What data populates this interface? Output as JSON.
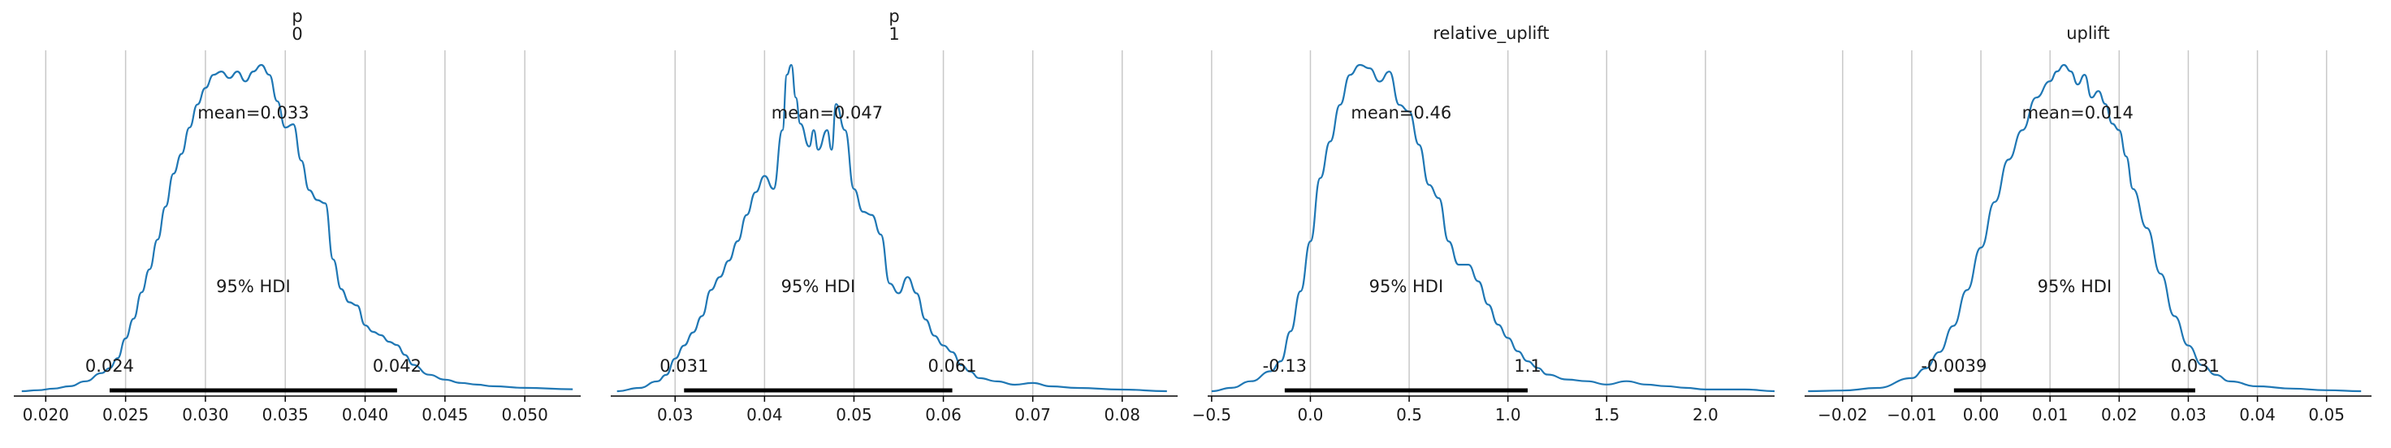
{
  "colors": {
    "density": "#1f77b4",
    "grid": "#c8c8c8",
    "hdi_bar": "#000000",
    "axis": "#000000"
  },
  "chart_data": [
    {
      "type": "area",
      "title": [
        "p",
        "0"
      ],
      "xlim": [
        0.018,
        0.0535
      ],
      "xticks": [
        0.02,
        0.025,
        0.03,
        0.035,
        0.04,
        0.045,
        0.05
      ],
      "xtick_labels": [
        "0.020",
        "0.025",
        "0.030",
        "0.035",
        "0.040",
        "0.045",
        "0.050"
      ],
      "mean_label": "mean=0.033",
      "mean": 0.033,
      "hdi_label": "95% HDI",
      "hdi": [
        0.024,
        0.042
      ],
      "hdi_low_label": "0.024",
      "hdi_high_label": "0.042",
      "density": {
        "x": [
          0.0185,
          0.0195,
          0.0205,
          0.0215,
          0.0225,
          0.0235,
          0.024,
          0.0245,
          0.025,
          0.0255,
          0.026,
          0.0265,
          0.027,
          0.0275,
          0.028,
          0.0285,
          0.029,
          0.0295,
          0.03,
          0.0305,
          0.031,
          0.0315,
          0.032,
          0.0325,
          0.033,
          0.0335,
          0.034,
          0.0345,
          0.035,
          0.0355,
          0.036,
          0.0365,
          0.037,
          0.0375,
          0.038,
          0.0385,
          0.039,
          0.0395,
          0.04,
          0.0405,
          0.041,
          0.0415,
          0.042,
          0.0425,
          0.043,
          0.044,
          0.045,
          0.046,
          0.047,
          0.048,
          0.05,
          0.053
        ],
        "y": [
          0.0,
          0.003,
          0.008,
          0.015,
          0.03,
          0.055,
          0.07,
          0.1,
          0.16,
          0.22,
          0.3,
          0.37,
          0.46,
          0.56,
          0.66,
          0.72,
          0.8,
          0.87,
          0.92,
          0.96,
          0.97,
          0.95,
          0.97,
          0.94,
          0.97,
          0.99,
          0.96,
          0.88,
          0.8,
          0.81,
          0.7,
          0.61,
          0.58,
          0.57,
          0.4,
          0.31,
          0.27,
          0.26,
          0.2,
          0.18,
          0.17,
          0.15,
          0.14,
          0.11,
          0.08,
          0.05,
          0.035,
          0.025,
          0.02,
          0.015,
          0.01,
          0.006
        ]
      }
    },
    {
      "type": "area",
      "title": [
        "p",
        "1"
      ],
      "xlim": [
        0.0228,
        0.0862
      ],
      "xticks": [
        0.03,
        0.04,
        0.05,
        0.06,
        0.07,
        0.08
      ],
      "xtick_labels": [
        "0.03",
        "0.04",
        "0.05",
        "0.06",
        "0.07",
        "0.08"
      ],
      "mean_label": "mean=0.047",
      "mean": 0.047,
      "hdi_label": "95% HDI",
      "hdi": [
        0.031,
        0.061
      ],
      "hdi_low_label": "0.031",
      "hdi_high_label": "0.061",
      "density": {
        "x": [
          0.0235,
          0.026,
          0.028,
          0.029,
          0.03,
          0.031,
          0.032,
          0.033,
          0.034,
          0.035,
          0.036,
          0.037,
          0.038,
          0.039,
          0.04,
          0.041,
          0.042,
          0.0425,
          0.043,
          0.0435,
          0.044,
          0.045,
          0.0455,
          0.046,
          0.047,
          0.0475,
          0.048,
          0.049,
          0.05,
          0.051,
          0.052,
          0.053,
          0.054,
          0.055,
          0.056,
          0.057,
          0.058,
          0.059,
          0.06,
          0.061,
          0.062,
          0.063,
          0.064,
          0.066,
          0.068,
          0.07,
          0.072,
          0.075,
          0.08,
          0.085
        ],
        "y": [
          0.0,
          0.01,
          0.03,
          0.05,
          0.1,
          0.14,
          0.18,
          0.23,
          0.31,
          0.35,
          0.4,
          0.46,
          0.54,
          0.61,
          0.66,
          0.62,
          0.8,
          0.97,
          1.0,
          0.9,
          0.82,
          0.75,
          0.8,
          0.74,
          0.8,
          0.74,
          0.88,
          0.8,
          0.62,
          0.55,
          0.54,
          0.48,
          0.33,
          0.3,
          0.35,
          0.3,
          0.22,
          0.17,
          0.14,
          0.12,
          0.08,
          0.06,
          0.04,
          0.03,
          0.02,
          0.025,
          0.015,
          0.01,
          0.005,
          0.0
        ]
      }
    },
    {
      "type": "area",
      "title": [
        "relative_uplift"
      ],
      "xlim": [
        -0.52,
        2.35
      ],
      "xticks": [
        -0.5,
        0.0,
        0.5,
        1.0,
        1.5,
        2.0
      ],
      "xtick_labels": [
        "−0.5",
        "0.0",
        "0.5",
        "1.0",
        "1.5",
        "2.0"
      ],
      "mean_label": "mean=0.46",
      "mean": 0.46,
      "hdi_label": "95% HDI",
      "hdi": [
        -0.13,
        1.1
      ],
      "hdi_low_label": "-0.13",
      "hdi_high_label": "1.1",
      "density": {
        "x": [
          -0.5,
          -0.4,
          -0.3,
          -0.2,
          -0.15,
          -0.1,
          -0.05,
          0.0,
          0.05,
          0.1,
          0.15,
          0.2,
          0.25,
          0.3,
          0.35,
          0.4,
          0.45,
          0.5,
          0.55,
          0.6,
          0.65,
          0.7,
          0.75,
          0.8,
          0.85,
          0.9,
          0.95,
          1.0,
          1.05,
          1.1,
          1.15,
          1.2,
          1.3,
          1.4,
          1.5,
          1.6,
          1.7,
          1.8,
          1.9,
          2.0,
          2.2,
          2.35
        ],
        "y": [
          0.0,
          0.01,
          0.03,
          0.06,
          0.09,
          0.18,
          0.3,
          0.45,
          0.64,
          0.75,
          0.86,
          0.95,
          0.98,
          0.97,
          0.93,
          0.96,
          0.86,
          0.84,
          0.74,
          0.62,
          0.58,
          0.45,
          0.38,
          0.38,
          0.33,
          0.26,
          0.2,
          0.16,
          0.12,
          0.09,
          0.07,
          0.05,
          0.035,
          0.03,
          0.02,
          0.03,
          0.02,
          0.015,
          0.01,
          0.005,
          0.005,
          0.0
        ]
      }
    },
    {
      "type": "area",
      "title": [
        "uplift"
      ],
      "xlim": [
        -0.0255,
        0.0565
      ],
      "xticks": [
        -0.02,
        -0.01,
        0.0,
        0.01,
        0.02,
        0.03,
        0.04,
        0.05
      ],
      "xtick_labels": [
        "−0.02",
        "−0.01",
        "0.00",
        "0.01",
        "0.02",
        "0.03",
        "0.04",
        "0.05"
      ],
      "mean_label": "mean=0.014",
      "mean": 0.014,
      "hdi_label": "95% HDI",
      "hdi": [
        -0.0039,
        0.031
      ],
      "hdi_low_label": "-0.0039",
      "hdi_high_label": "0.031",
      "density": {
        "x": [
          -0.025,
          -0.02,
          -0.015,
          -0.01,
          -0.008,
          -0.006,
          -0.004,
          -0.002,
          0.0,
          0.002,
          0.004,
          0.006,
          0.008,
          0.01,
          0.011,
          0.012,
          0.013,
          0.014,
          0.015,
          0.016,
          0.017,
          0.018,
          0.019,
          0.02,
          0.021,
          0.022,
          0.024,
          0.026,
          0.028,
          0.03,
          0.032,
          0.034,
          0.036,
          0.04,
          0.045,
          0.05,
          0.055
        ],
        "y": [
          0.0,
          0.002,
          0.01,
          0.04,
          0.07,
          0.12,
          0.2,
          0.31,
          0.44,
          0.58,
          0.71,
          0.8,
          0.9,
          0.95,
          0.98,
          1.0,
          0.98,
          0.94,
          0.97,
          0.9,
          0.92,
          0.88,
          0.82,
          0.8,
          0.72,
          0.62,
          0.5,
          0.36,
          0.23,
          0.14,
          0.08,
          0.05,
          0.03,
          0.015,
          0.008,
          0.003,
          0.0
        ]
      }
    }
  ]
}
